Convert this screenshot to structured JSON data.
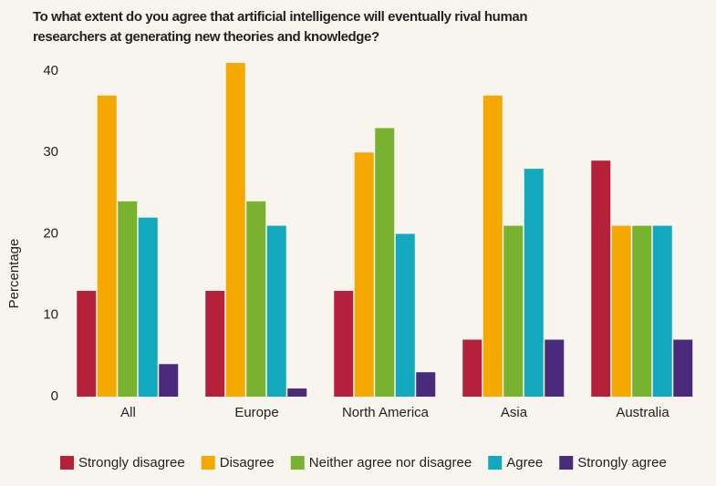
{
  "chart_data": {
    "type": "bar",
    "title": "To what extent do you agree that artificial intelligence will eventually rival human researchers at generating new theories and knowledge?",
    "y_label": "Percentage",
    "categories": [
      "All",
      "Europe",
      "North America",
      "Asia",
      "Australia"
    ],
    "series": [
      {
        "name": "Strongly disagree",
        "color": "#b5203a",
        "values": [
          13,
          13,
          13,
          7,
          29
        ]
      },
      {
        "name": "Disagree",
        "color": "#f5a800",
        "values": [
          37,
          41,
          30,
          37,
          21
        ]
      },
      {
        "name": "Neither agree nor disagree",
        "color": "#79b22e",
        "values": [
          24,
          24,
          33,
          21,
          21
        ]
      },
      {
        "name": "Agree",
        "color": "#12a9bf",
        "values": [
          22,
          21,
          20,
          28,
          21
        ]
      },
      {
        "name": "Strongly agree",
        "color": "#4a2a7a",
        "values": [
          4,
          1,
          3,
          7,
          7
        ]
      }
    ],
    "ylim": [
      0,
      40
    ],
    "yticks": [
      0,
      10,
      20,
      30,
      40
    ],
    "grid": false,
    "legend": "bottom"
  }
}
